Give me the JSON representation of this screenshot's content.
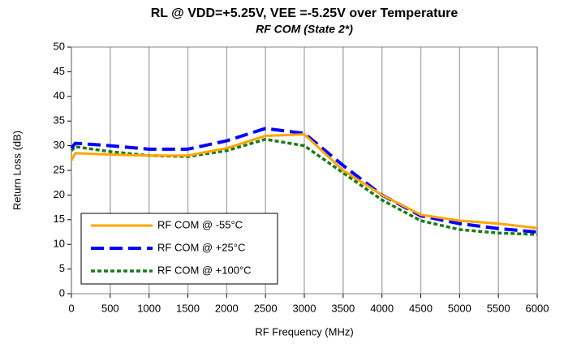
{
  "chart_data": {
    "type": "line",
    "title": "RL @ VDD=+5.25V, VEE =-5.25V over Temperature",
    "subtitle": "RF COM (State 2*)",
    "x_label": "RF Frequency (MHz)",
    "y_label": "Return Loss (dB)",
    "x": [
      0,
      50,
      500,
      1000,
      1500,
      2000,
      2500,
      3000,
      3500,
      4000,
      4500,
      5000,
      5500,
      6000
    ],
    "series": [
      {
        "name": "RF COM @ -55°C",
        "color": "#ffa500",
        "dash": "solid",
        "values": [
          27,
          28.5,
          28.2,
          28,
          28,
          29.5,
          32,
          32.3,
          25,
          20,
          16,
          14.8,
          14.2,
          13.3
        ]
      },
      {
        "name": "RF COM @ +25°C",
        "color": "#0000ff",
        "dash": "dashed",
        "values": [
          29.5,
          30.5,
          30,
          29.3,
          29.3,
          31,
          33.5,
          32.5,
          26,
          20,
          15.8,
          14.2,
          13.2,
          12.5
        ]
      },
      {
        "name": "RF COM @ +100°C",
        "color": "#1a7a1a",
        "dash": "dotted",
        "values": [
          29,
          29.8,
          28.8,
          28,
          27.8,
          29,
          31.3,
          30,
          24.5,
          19,
          14.8,
          13,
          12.3,
          12
        ]
      }
    ],
    "xlim": [
      0,
      6000
    ],
    "xticks": [
      0,
      500,
      1000,
      1500,
      2000,
      2500,
      3000,
      3500,
      4000,
      4500,
      5000,
      5500,
      6000
    ],
    "ylim": [
      0,
      50
    ],
    "yticks": [
      0,
      5,
      10,
      15,
      20,
      25,
      30,
      35,
      40,
      45,
      50
    ],
    "grid": "x",
    "legend": "lower left"
  }
}
